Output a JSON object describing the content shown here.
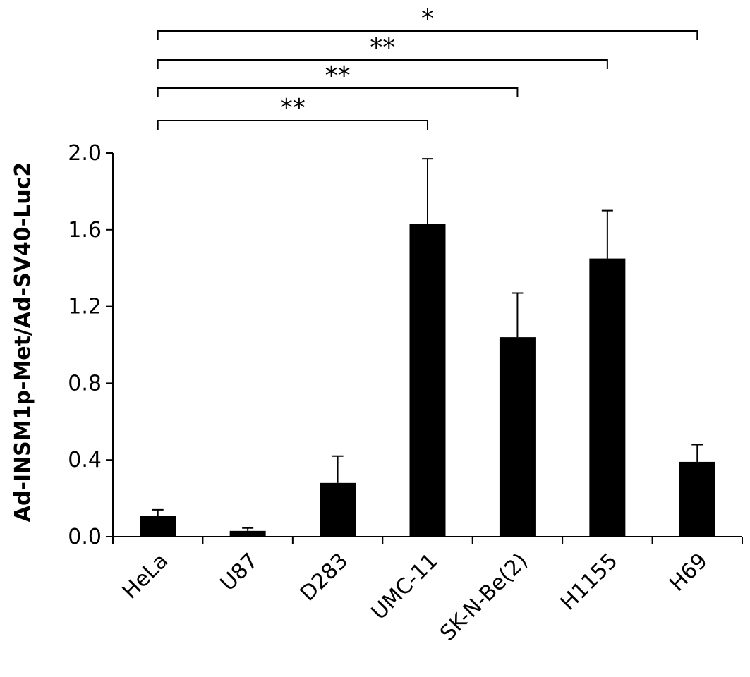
{
  "chart_data": {
    "type": "bar",
    "title": "",
    "xlabel": "",
    "ylabel": "Ad-INSM1p-Met/Ad-SV40-Luc2",
    "categories": [
      "HeLa",
      "U87",
      "D283",
      "UMC-11",
      "SK-N-Be(2)",
      "H1155",
      "H69"
    ],
    "values": [
      0.11,
      0.03,
      0.28,
      1.63,
      1.04,
      1.45,
      0.39
    ],
    "errors": [
      0.03,
      0.015,
      0.14,
      0.34,
      0.23,
      0.25,
      0.09
    ],
    "ylim": [
      0,
      2.0
    ],
    "yticks": [
      "0.0",
      "0.4",
      "0.8",
      "1.2",
      "1.6",
      "2.0"
    ],
    "grid": false,
    "bar_color": "#000000",
    "significance": [
      {
        "from": "HeLa",
        "to": "UMC-11",
        "label": "**"
      },
      {
        "from": "HeLa",
        "to": "SK-N-Be(2)",
        "label": "**"
      },
      {
        "from": "HeLa",
        "to": "H1155",
        "label": "**"
      },
      {
        "from": "HeLa",
        "to": "H69",
        "label": "*"
      }
    ]
  }
}
